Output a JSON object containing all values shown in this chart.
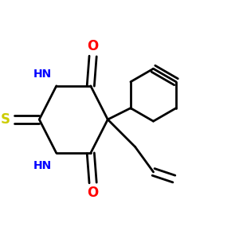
{
  "bg_color": "#ffffff",
  "bond_color": "#000000",
  "N_color": "#0000ff",
  "O_color": "#ff0000",
  "S_color": "#cccc00",
  "lw": 2.0,
  "fig_w": 3.0,
  "fig_h": 3.0,
  "dpi": 100,
  "xlim": [
    0.0,
    1.0
  ],
  "ylim": [
    0.05,
    0.95
  ]
}
